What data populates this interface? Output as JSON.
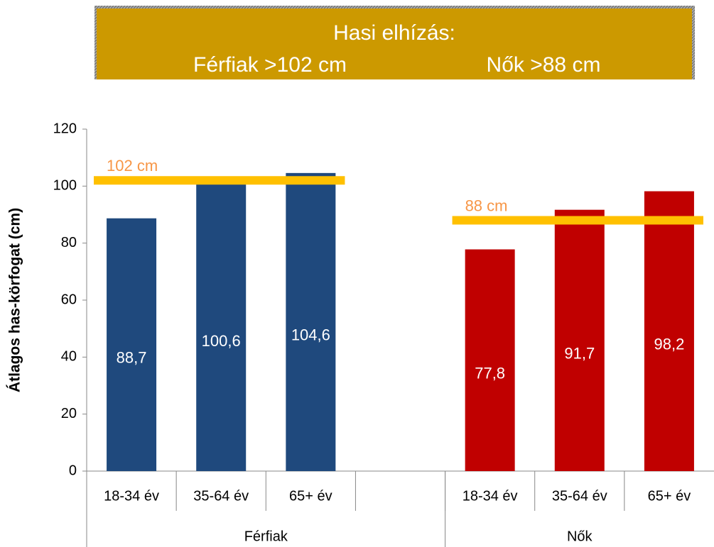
{
  "chart_data": {
    "type": "bar",
    "banner": {
      "title": "Hasi elhízás:",
      "lines": [
        "Férfiak >102 cm",
        "Nők >88 cm"
      ]
    },
    "ylabel": "Átlagos has-körfogat (cm)",
    "categories": [
      "18-34 év",
      "35-64 év",
      "65+ év",
      null,
      "18-34 év",
      "35-64 év",
      "65+ év"
    ],
    "series": [
      {
        "name": "Férfiak",
        "color": "#1f497d",
        "values": [
          88.7,
          100.6,
          104.6,
          null,
          null,
          null,
          null
        ],
        "value_labels": [
          "88,7",
          "100,6",
          "104,6",
          null,
          null,
          null,
          null
        ],
        "threshold": 102,
        "threshold_label": "102 cm",
        "threshold_color": "#ffc000"
      },
      {
        "name": "Nők",
        "color": "#c00000",
        "values": [
          null,
          null,
          null,
          null,
          77.8,
          91.7,
          98.2
        ],
        "value_labels": [
          null,
          null,
          null,
          null,
          "77,8",
          "91,7",
          "98,2"
        ],
        "threshold": 88,
        "threshold_label": "88 cm",
        "threshold_color": "#ffc000"
      }
    ],
    "ylim": [
      0,
      120
    ],
    "yticks": [
      0,
      20,
      40,
      60,
      80,
      100,
      120
    ]
  }
}
